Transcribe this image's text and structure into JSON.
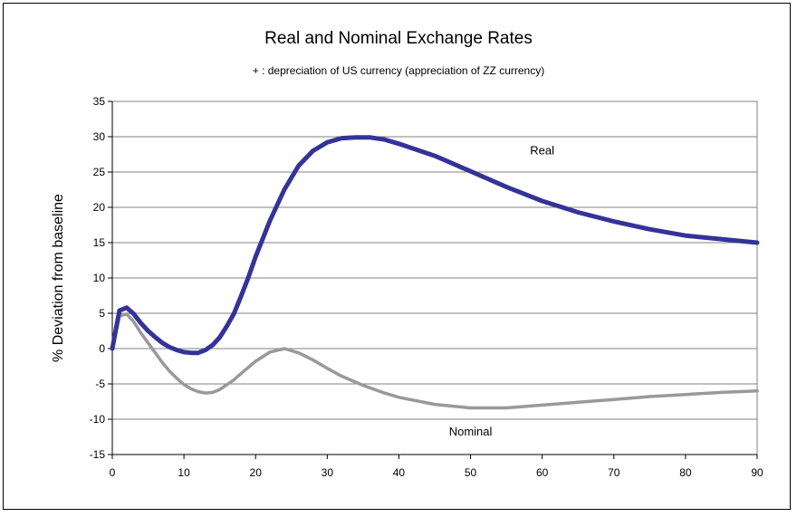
{
  "chart_data": {
    "type": "line",
    "title": "Real and Nominal Exchange Rates",
    "subtitle": "+ : depreciation of US currency  (appreciation of ZZ currency)",
    "xlabel": "",
    "ylabel": "% Deviation from baseline",
    "xlim": [
      0,
      90
    ],
    "ylim": [
      -15,
      35
    ],
    "xticks": [
      0,
      10,
      20,
      30,
      40,
      50,
      60,
      70,
      80,
      90
    ],
    "yticks": [
      -15,
      -10,
      -5,
      0,
      5,
      10,
      15,
      20,
      25,
      30,
      35
    ],
    "grid": true,
    "legend": "none",
    "series": [
      {
        "name": "Real",
        "color": "#333399",
        "x": [
          0,
          1,
          2,
          3,
          4,
          5,
          6,
          7,
          8,
          9,
          10,
          11,
          12,
          13,
          14,
          15,
          16,
          17,
          18,
          19,
          20,
          22,
          24,
          26,
          28,
          30,
          32,
          34,
          36,
          38,
          40,
          45,
          50,
          55,
          60,
          65,
          70,
          75,
          80,
          85,
          90
        ],
        "values": [
          0,
          5.4,
          5.8,
          4.9,
          3.6,
          2.5,
          1.6,
          0.8,
          0.2,
          -0.2,
          -0.5,
          -0.6,
          -0.6,
          -0.2,
          0.5,
          1.6,
          3.2,
          5.0,
          7.5,
          10.1,
          13.0,
          18.1,
          22.5,
          25.9,
          28.0,
          29.2,
          29.8,
          29.9,
          29.9,
          29.6,
          29.0,
          27.3,
          25.1,
          22.9,
          20.9,
          19.3,
          18.0,
          16.9,
          16.0,
          15.5,
          15.0
        ]
      },
      {
        "name": "Nominal",
        "color": "#999999",
        "x": [
          0,
          1,
          2,
          3,
          4,
          5,
          6,
          7,
          8,
          9,
          10,
          11,
          12,
          13,
          14,
          15,
          16,
          17,
          18,
          20,
          22,
          24,
          26,
          28,
          30,
          32,
          35,
          38,
          40,
          45,
          50,
          55,
          60,
          65,
          70,
          75,
          80,
          85,
          90
        ],
        "values": [
          0,
          4.6,
          4.9,
          3.8,
          2.2,
          0.8,
          -0.6,
          -2.0,
          -3.2,
          -4.2,
          -5.1,
          -5.7,
          -6.1,
          -6.3,
          -6.2,
          -5.8,
          -5.1,
          -4.4,
          -3.5,
          -1.8,
          -0.5,
          0.0,
          -0.6,
          -1.6,
          -2.8,
          -3.9,
          -5.2,
          -6.3,
          -6.9,
          -7.9,
          -8.4,
          -8.4,
          -8.0,
          -7.6,
          -7.2,
          -6.8,
          -6.5,
          -6.2,
          -6.0
        ]
      }
    ],
    "annotations": [
      {
        "text": "Real",
        "x": 60,
        "y": 28
      },
      {
        "text": "Nominal",
        "x": 50,
        "y": -11.8
      }
    ]
  }
}
